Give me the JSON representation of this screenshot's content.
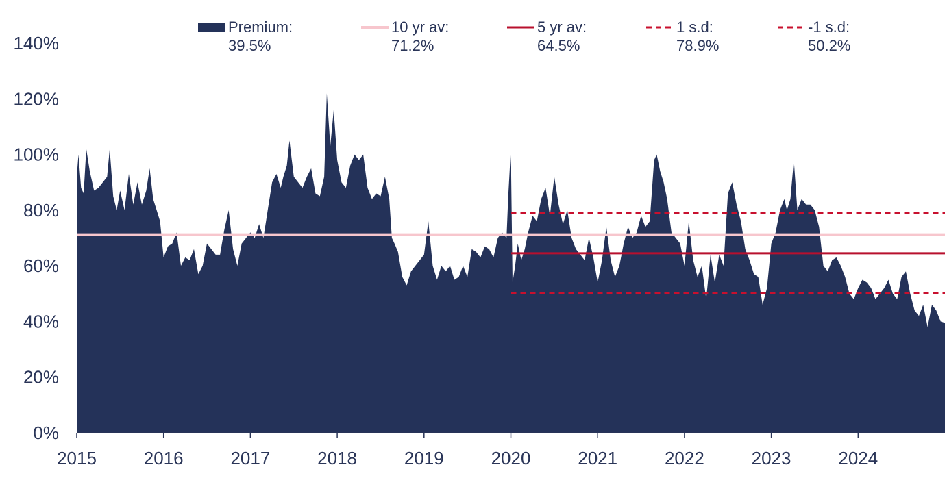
{
  "chart_data": {
    "type": "area",
    "title": "",
    "xlabel": "",
    "ylabel": "",
    "xlim": [
      2015.0,
      2025.0
    ],
    "ylim": [
      0,
      140
    ],
    "y_unit": "%",
    "x_ticks": [
      "2015",
      "2016",
      "2017",
      "2018",
      "2019",
      "2020",
      "2021",
      "2022",
      "2023",
      "2024"
    ],
    "y_ticks": [
      "0%",
      "20%",
      "40%",
      "60%",
      "80%",
      "100%",
      "120%",
      "140%"
    ],
    "grid": false,
    "legend_position": "top",
    "colors": {
      "premium": "#243259",
      "avg10": "#f7c6cd",
      "avg5": "#b8102e",
      "sd": "#c8102e",
      "axis": "#2a3558"
    },
    "legend": [
      {
        "key": "premium",
        "label": "Premium:",
        "value": "39.5%"
      },
      {
        "key": "avg10",
        "label": "10 yr av:",
        "value": "71.2%"
      },
      {
        "key": "avg5",
        "label": "5 yr av:",
        "value": "64.5%"
      },
      {
        "key": "sd_plus",
        "label": "1 s.d:",
        "value": "78.9%"
      },
      {
        "key": "sd_minus",
        "label": "-1 s.d:",
        "value": "50.2%"
      }
    ],
    "reference_lines": [
      {
        "key": "avg10",
        "y": 71.2,
        "x_start": 2015.0,
        "x_end": 2025.0,
        "style": "solid"
      },
      {
        "key": "avg5",
        "y": 64.5,
        "x_start": 2020.0,
        "x_end": 2025.0,
        "style": "solid"
      },
      {
        "key": "sd_plus",
        "y": 78.9,
        "x_start": 2020.0,
        "x_end": 2025.0,
        "style": "dashed"
      },
      {
        "key": "sd_minus",
        "y": 50.2,
        "x_start": 2020.0,
        "x_end": 2025.0,
        "style": "dashed"
      }
    ],
    "series": [
      {
        "key": "premium",
        "x": [
          2015.0,
          2015.02,
          2015.05,
          2015.08,
          2015.11,
          2015.15,
          2015.2,
          2015.25,
          2015.3,
          2015.35,
          2015.38,
          2015.42,
          2015.46,
          2015.5,
          2015.55,
          2015.6,
          2015.65,
          2015.7,
          2015.75,
          2015.8,
          2015.84,
          2015.88,
          2015.92,
          2015.96,
          2016.0,
          2016.05,
          2016.1,
          2016.15,
          2016.2,
          2016.25,
          2016.3,
          2016.35,
          2016.4,
          2016.45,
          2016.5,
          2016.55,
          2016.6,
          2016.65,
          2016.7,
          2016.75,
          2016.8,
          2016.85,
          2016.9,
          2016.95,
          2017.0,
          2017.05,
          2017.1,
          2017.15,
          2017.2,
          2017.25,
          2017.3,
          2017.35,
          2017.38,
          2017.42,
          2017.45,
          2017.5,
          2017.55,
          2017.6,
          2017.65,
          2017.7,
          2017.75,
          2017.8,
          2017.85,
          2017.88,
          2017.92,
          2017.96,
          2018.0,
          2018.05,
          2018.1,
          2018.15,
          2018.2,
          2018.25,
          2018.3,
          2018.35,
          2018.4,
          2018.45,
          2018.5,
          2018.55,
          2018.6,
          2018.63,
          2018.66,
          2018.7,
          2018.75,
          2018.8,
          2018.85,
          2018.9,
          2018.95,
          2019.0,
          2019.05,
          2019.1,
          2019.15,
          2019.2,
          2019.25,
          2019.3,
          2019.35,
          2019.4,
          2019.45,
          2019.5,
          2019.55,
          2019.6,
          2019.65,
          2019.7,
          2019.75,
          2019.8,
          2019.85,
          2019.9,
          2019.95,
          2019.97,
          2020.0,
          2020.02,
          2020.05,
          2020.08,
          2020.12,
          2020.16,
          2020.2,
          2020.25,
          2020.3,
          2020.35,
          2020.4,
          2020.45,
          2020.5,
          2020.55,
          2020.6,
          2020.65,
          2020.7,
          2020.75,
          2020.8,
          2020.85,
          2020.9,
          2020.95,
          2021.0,
          2021.05,
          2021.1,
          2021.15,
          2021.2,
          2021.25,
          2021.3,
          2021.35,
          2021.4,
          2021.45,
          2021.5,
          2021.55,
          2021.6,
          2021.65,
          2021.68,
          2021.72,
          2021.76,
          2021.8,
          2021.85,
          2021.9,
          2021.95,
          2022.0,
          2022.05,
          2022.1,
          2022.15,
          2022.2,
          2022.25,
          2022.3,
          2022.35,
          2022.4,
          2022.45,
          2022.5,
          2022.55,
          2022.6,
          2022.65,
          2022.7,
          2022.75,
          2022.8,
          2022.85,
          2022.9,
          2022.95,
          2023.0,
          2023.05,
          2023.1,
          2023.15,
          2023.18,
          2023.22,
          2023.26,
          2023.3,
          2023.35,
          2023.4,
          2023.45,
          2023.5,
          2023.55,
          2023.6,
          2023.65,
          2023.7,
          2023.75,
          2023.8,
          2023.85,
          2023.9,
          2023.95,
          2024.0,
          2024.05,
          2024.1,
          2024.15,
          2024.2,
          2024.25,
          2024.3,
          2024.35,
          2024.4,
          2024.45,
          2024.5,
          2024.55,
          2024.6,
          2024.65,
          2024.7,
          2024.75,
          2024.8,
          2024.85,
          2024.9,
          2024.95,
          2025.0
        ],
        "y": [
          92,
          100,
          88,
          86,
          102,
          94,
          87,
          88,
          90,
          92,
          102,
          85,
          80,
          87,
          80,
          93,
          82,
          90,
          82,
          87,
          95,
          84,
          80,
          76,
          63,
          67,
          68,
          72,
          60,
          63,
          62,
          66,
          57,
          60,
          68,
          66,
          64,
          64,
          73,
          80,
          66,
          60,
          68,
          70,
          72,
          70,
          75,
          70,
          80,
          90,
          93,
          88,
          92,
          96,
          105,
          92,
          90,
          88,
          92,
          95,
          86,
          85,
          92,
          122,
          103,
          116,
          98,
          90,
          88,
          96,
          100,
          98,
          100,
          88,
          84,
          86,
          85,
          92,
          84,
          70,
          68,
          65,
          56,
          53,
          58,
          60,
          62,
          64,
          76,
          60,
          55,
          60,
          58,
          60,
          55,
          56,
          60,
          56,
          66,
          65,
          63,
          67,
          66,
          63,
          70,
          72,
          70,
          85,
          102,
          54,
          60,
          68,
          62,
          66,
          72,
          78,
          76,
          84,
          88,
          78,
          92,
          82,
          75,
          80,
          70,
          66,
          64,
          62,
          70,
          63,
          54,
          62,
          74,
          62,
          56,
          60,
          68,
          74,
          70,
          72,
          78,
          74,
          76,
          98,
          100,
          94,
          90,
          84,
          72,
          70,
          68,
          60,
          76,
          62,
          56,
          60,
          48,
          64,
          54,
          64,
          60,
          86,
          90,
          82,
          76,
          66,
          62,
          57,
          56,
          46,
          52,
          68,
          72,
          80,
          84,
          80,
          84,
          98,
          80,
          84,
          82,
          82,
          80,
          74,
          60,
          58,
          62,
          63,
          60,
          56,
          50,
          48,
          52,
          55,
          54,
          52,
          48,
          50,
          52,
          55,
          50,
          48,
          56,
          58,
          50,
          44,
          42,
          46,
          38,
          46,
          44,
          40,
          39.5
        ]
      }
    ]
  }
}
